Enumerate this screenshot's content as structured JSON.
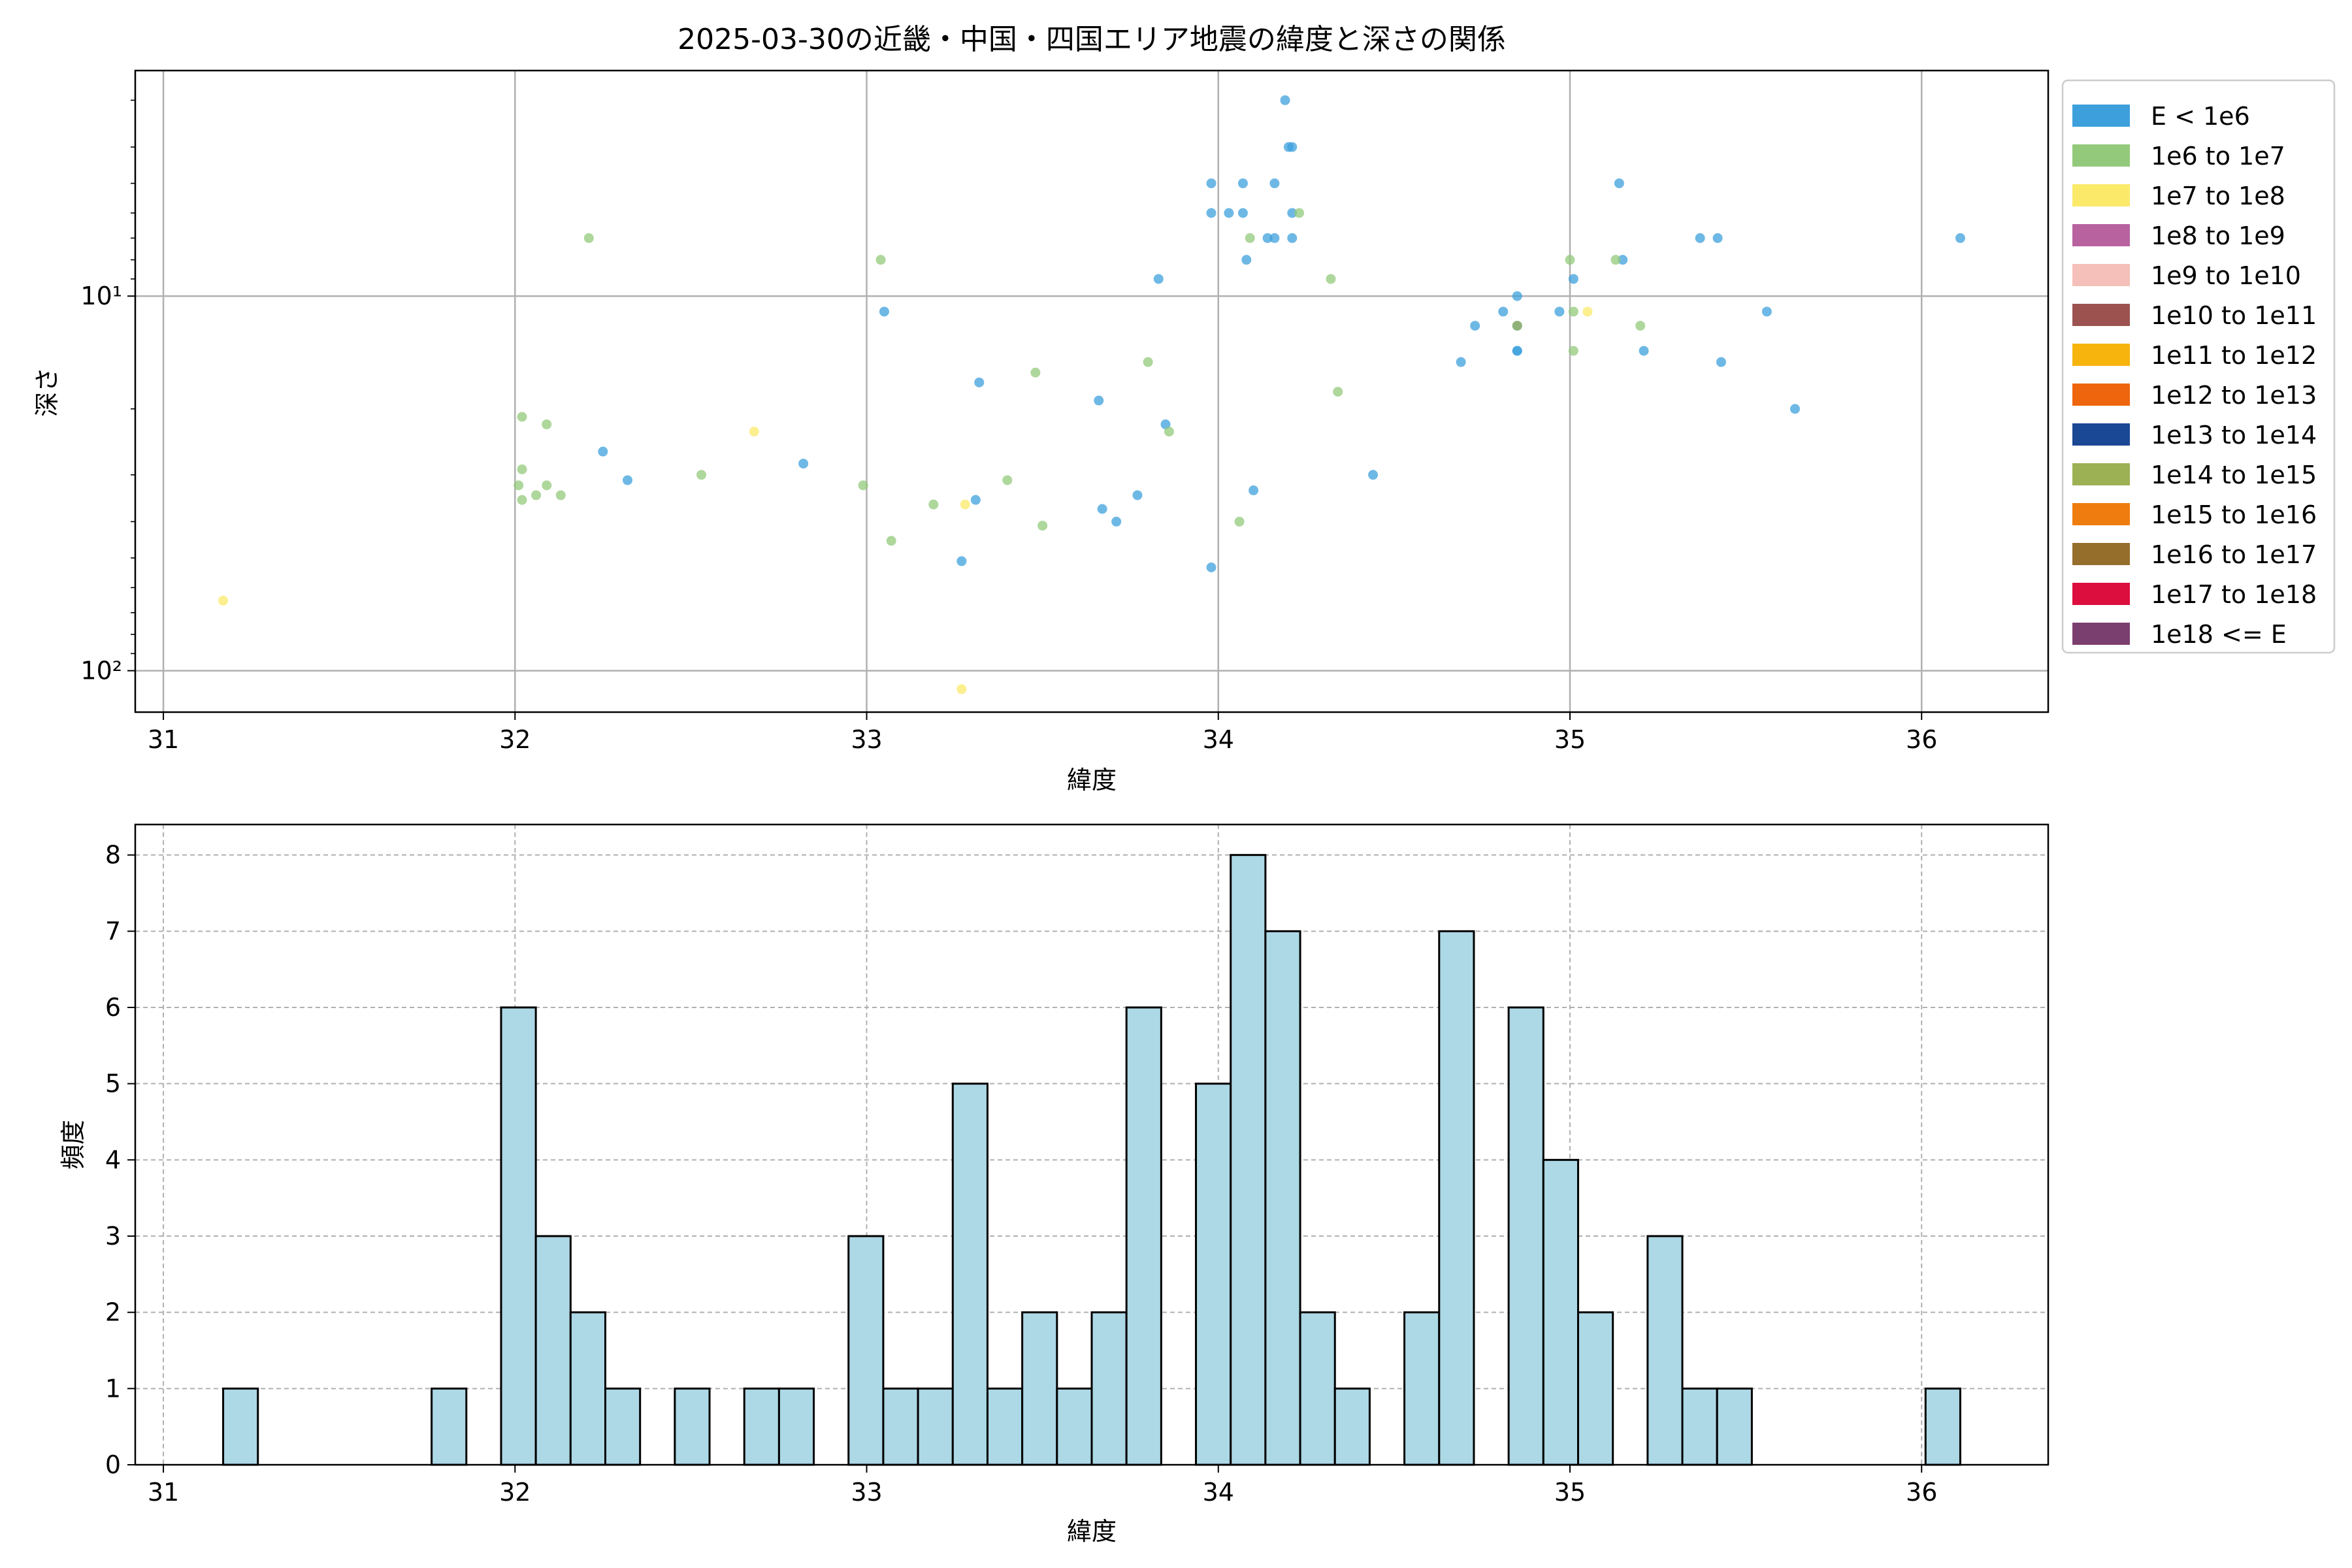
{
  "chart_data": [
    {
      "type": "scatter",
      "title": "2025-03-30の近畿・中国・四国エリア地震の緯度と深さの関係",
      "xlabel": "緯度",
      "ylabel": "深さ",
      "xlim": [
        30.92,
        36.36
      ],
      "ylim": [
        129,
        2.5
      ],
      "y_scale": "log",
      "y_inverted": true,
      "x_ticks": [
        31,
        32,
        33,
        34,
        35,
        36
      ],
      "y_ticks": [
        {
          "value": 10,
          "label": "10¹"
        },
        {
          "value": 100,
          "label": "10²"
        }
      ],
      "grid": true,
      "legend_position": "outside-right",
      "legend": [
        {
          "label": "E < 1e6",
          "color": "#3da0dc"
        },
        {
          "label": "1e6 to 1e7",
          "color": "#93c97b"
        },
        {
          "label": "1e7 to 1e8",
          "color": "#fbe96a"
        },
        {
          "label": "1e8 to 1e9",
          "color": "#b8629f"
        },
        {
          "label": "1e9 to 1e10",
          "color": "#f5c0b9"
        },
        {
          "label": "1e10 to 1e11",
          "color": "#9c5350"
        },
        {
          "label": "1e11 to 1e12",
          "color": "#f6b40d"
        },
        {
          "label": "1e12 to 1e13",
          "color": "#ee650d"
        },
        {
          "label": "1e13 to 1e14",
          "color": "#1b4895"
        },
        {
          "label": "1e14 to 1e15",
          "color": "#9cb054"
        },
        {
          "label": "1e15 to 1e16",
          "color": "#ef7c0e"
        },
        {
          "label": "1e16 to 1e17",
          "color": "#956e2c"
        },
        {
          "label": "1e17 to 1e18",
          "color": "#dc0e3e"
        },
        {
          "label": "1e18 <= E",
          "color": "#7b3f6f"
        }
      ],
      "series": [
        {
          "color": "#3da0dc",
          "points": [
            [
              32.25,
              26
            ],
            [
              32.32,
              31
            ],
            [
              32.82,
              28
            ],
            [
              33.05,
              11
            ],
            [
              33.27,
              51
            ],
            [
              33.31,
              35
            ],
            [
              33.32,
              17
            ],
            [
              33.66,
              19
            ],
            [
              33.67,
              37
            ],
            [
              33.71,
              40
            ],
            [
              33.77,
              34
            ],
            [
              33.83,
              9
            ],
            [
              33.85,
              22
            ],
            [
              33.98,
              5
            ],
            [
              33.98,
              6
            ],
            [
              33.98,
              53
            ],
            [
              34.03,
              6
            ],
            [
              34.07,
              5
            ],
            [
              34.07,
              6
            ],
            [
              34.08,
              8
            ],
            [
              34.1,
              33
            ],
            [
              34.14,
              7
            ],
            [
              34.16,
              5
            ],
            [
              34.16,
              7
            ],
            [
              34.19,
              3
            ],
            [
              34.2,
              4
            ],
            [
              34.21,
              4
            ],
            [
              34.21,
              6
            ],
            [
              34.21,
              7
            ],
            [
              34.44,
              30
            ],
            [
              34.69,
              15
            ],
            [
              34.73,
              12
            ],
            [
              34.81,
              11
            ],
            [
              34.85,
              10
            ],
            [
              34.85,
              12
            ],
            [
              34.85,
              14
            ],
            [
              34.85,
              14
            ],
            [
              34.97,
              11
            ],
            [
              35.01,
              9
            ],
            [
              35.14,
              5
            ],
            [
              35.15,
              8
            ],
            [
              35.21,
              14
            ],
            [
              35.37,
              7
            ],
            [
              35.42,
              7
            ],
            [
              35.43,
              15
            ],
            [
              35.56,
              11
            ],
            [
              35.64,
              20
            ],
            [
              36.11,
              7
            ]
          ]
        },
        {
          "color": "#93c97b",
          "points": [
            [
              32.01,
              32
            ],
            [
              32.02,
              21
            ],
            [
              32.02,
              29
            ],
            [
              32.02,
              35
            ],
            [
              32.06,
              34
            ],
            [
              32.09,
              22
            ],
            [
              32.09,
              32
            ],
            [
              32.13,
              34
            ],
            [
              32.21,
              7
            ],
            [
              32.53,
              30
            ],
            [
              32.99,
              32
            ],
            [
              33.04,
              8
            ],
            [
              33.07,
              45
            ],
            [
              33.19,
              36
            ],
            [
              33.4,
              31
            ],
            [
              33.48,
              16
            ],
            [
              33.5,
              41
            ],
            [
              33.8,
              15
            ],
            [
              33.86,
              23
            ],
            [
              34.06,
              40
            ],
            [
              34.09,
              7
            ],
            [
              34.23,
              6
            ],
            [
              34.32,
              9
            ],
            [
              34.34,
              18
            ],
            [
              35.0,
              8
            ],
            [
              35.01,
              11
            ],
            [
              35.01,
              14
            ],
            [
              35.13,
              8
            ],
            [
              35.2,
              12
            ]
          ]
        },
        {
          "color": "#fbe96a",
          "points": [
            [
              31.17,
              65
            ],
            [
              32.68,
              23
            ],
            [
              33.27,
              112
            ],
            [
              33.28,
              36
            ],
            [
              35.05,
              11
            ]
          ]
        },
        {
          "color": "#9cb054",
          "points": [
            [
              34.85,
              12
            ]
          ]
        }
      ]
    },
    {
      "type": "bar",
      "xlabel": "緯度",
      "ylabel": "頻度",
      "xlim": [
        30.92,
        36.36
      ],
      "ylim": [
        0,
        8.4
      ],
      "x_ticks": [
        31,
        32,
        33,
        34,
        35,
        36
      ],
      "y_ticks": [
        0,
        1,
        2,
        3,
        4,
        5,
        6,
        7,
        8
      ],
      "grid": true,
      "bar_color": "#add8e6",
      "edge_color": "#000000",
      "bin_start": 31.17,
      "bin_width": 0.0988,
      "values": [
        1,
        0,
        0,
        0,
        0,
        0,
        1,
        0,
        6,
        3,
        2,
        1,
        0,
        1,
        0,
        1,
        1,
        0,
        3,
        1,
        1,
        5,
        1,
        2,
        1,
        2,
        6,
        0,
        5,
        8,
        7,
        2,
        1,
        0,
        2,
        7,
        0,
        6,
        4,
        2,
        0,
        3,
        1,
        1,
        0,
        0,
        0,
        0,
        0,
        1
      ]
    }
  ]
}
